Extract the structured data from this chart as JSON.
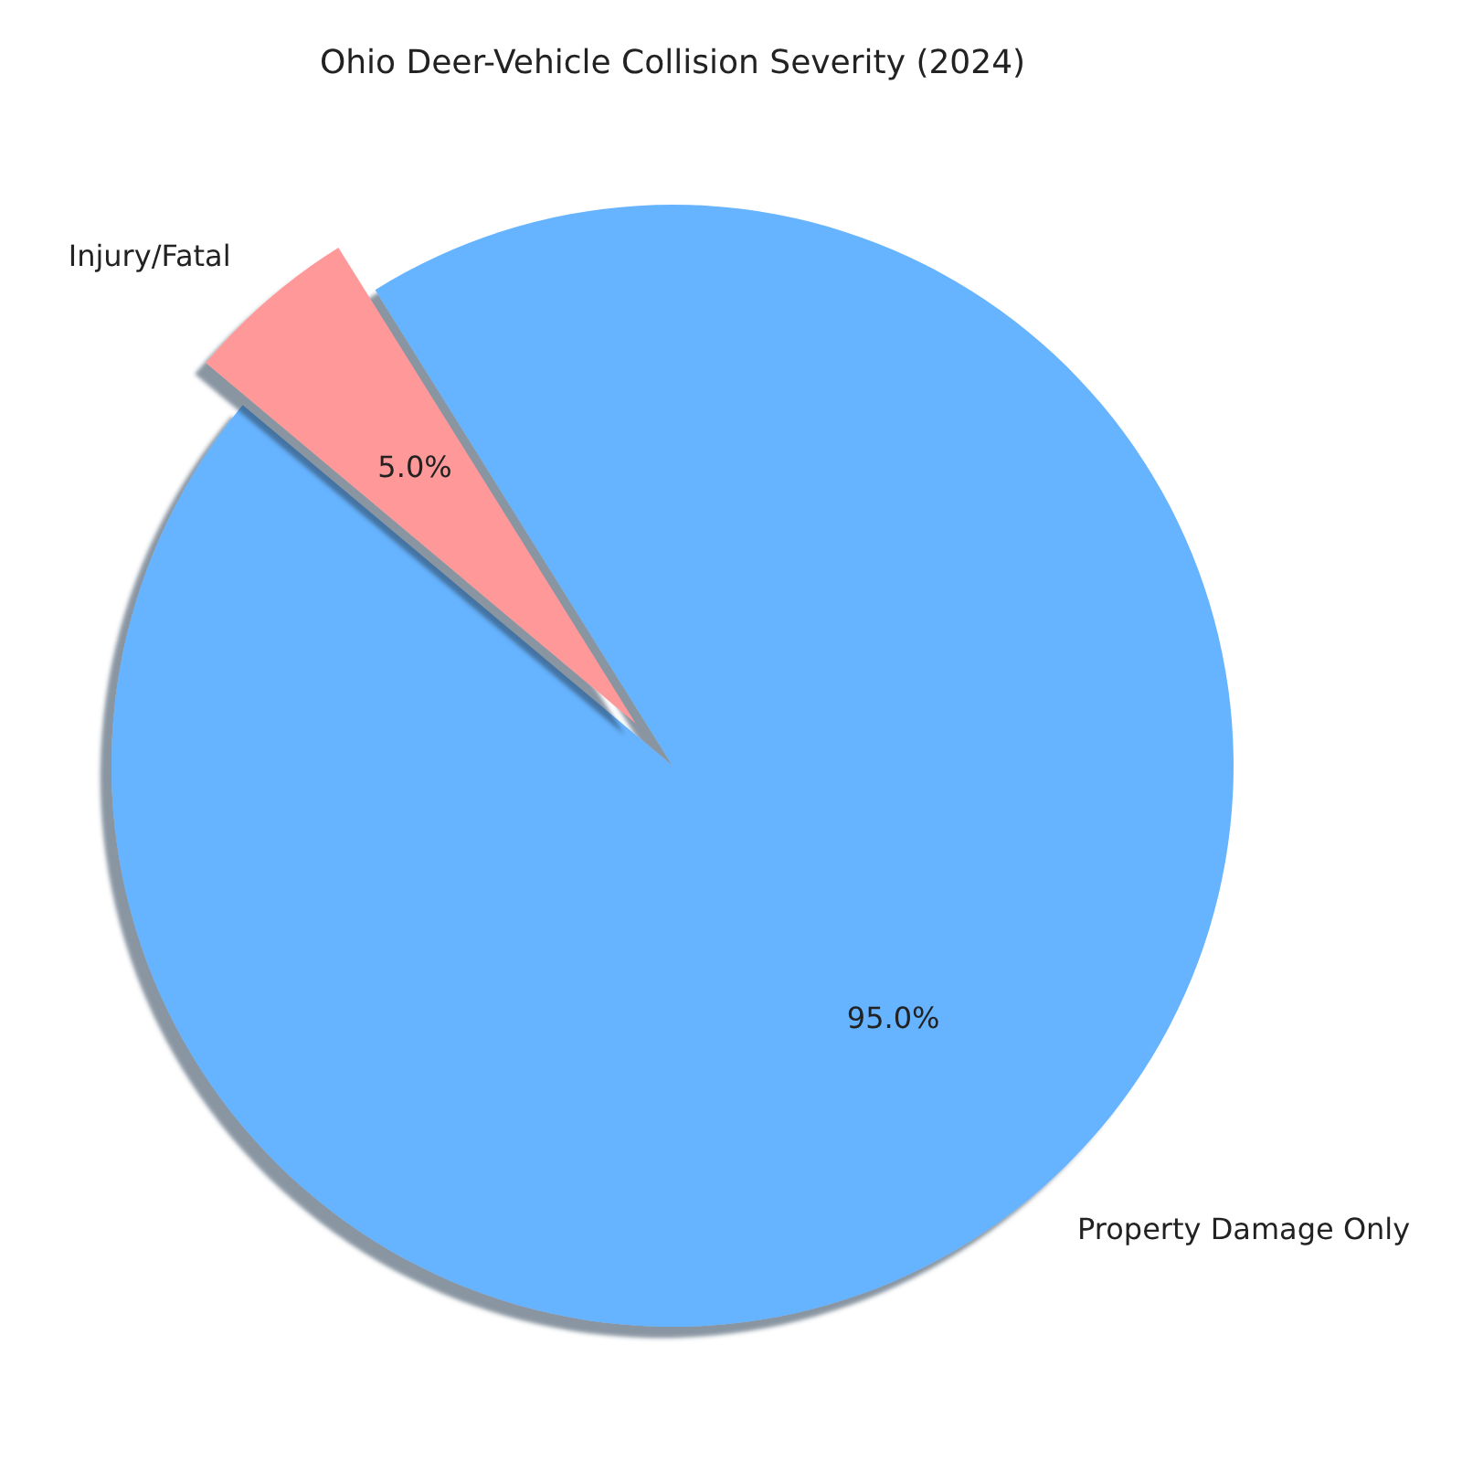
{
  "chart_data": {
    "type": "pie",
    "title": "Ohio Deer-Vehicle Collision Severity (2024)",
    "categories": [
      "Property Damage Only",
      "Injury/Fatal"
    ],
    "values": [
      95,
      5
    ],
    "colors": [
      "#66b3ff",
      "#ff9999"
    ],
    "value_labels": [
      "95.0%",
      "5.0%"
    ]
  }
}
